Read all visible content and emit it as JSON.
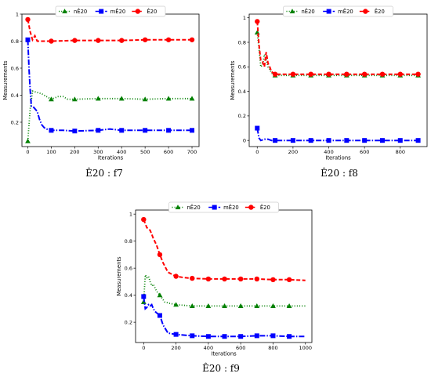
{
  "chart_data": [
    {
      "type": "line",
      "caption": "Ê20 : f7",
      "xlabel": "Iterations",
      "ylabel": "Measurements",
      "xlim": [
        -25,
        730
      ],
      "ylim": [
        0.02,
        1.0
      ],
      "xticks": [
        0,
        100,
        200,
        300,
        400,
        500,
        600,
        700
      ],
      "yticks": [
        0.2,
        0.4,
        0.6,
        0.8,
        1.0
      ],
      "grid": false,
      "legend_position": "top-center",
      "series": [
        {
          "name": "nÊ20",
          "color": "#008000",
          "style": "dotted",
          "marker": "triangle",
          "x": [
            0,
            10,
            20,
            40,
            60,
            80,
            100,
            130,
            150,
            170,
            200,
            300,
            400,
            500,
            600,
            700
          ],
          "y": [
            0.06,
            0.3,
            0.43,
            0.42,
            0.41,
            0.39,
            0.37,
            0.39,
            0.39,
            0.37,
            0.37,
            0.375,
            0.375,
            0.37,
            0.375,
            0.375
          ],
          "marker_x": [
            0,
            100,
            200,
            300,
            400,
            500,
            600,
            700
          ],
          "marker_y": [
            0.06,
            0.37,
            0.37,
            0.375,
            0.375,
            0.37,
            0.375,
            0.375
          ]
        },
        {
          "name": "mÊ20",
          "color": "#0000ff",
          "style": "dashdot",
          "marker": "square",
          "x": [
            0,
            5,
            10,
            15,
            20,
            30,
            40,
            50,
            60,
            70,
            80,
            100,
            150,
            200,
            300,
            350,
            400,
            500,
            600,
            700
          ],
          "y": [
            0.81,
            0.6,
            0.44,
            0.32,
            0.32,
            0.3,
            0.28,
            0.22,
            0.18,
            0.16,
            0.15,
            0.14,
            0.14,
            0.135,
            0.14,
            0.15,
            0.14,
            0.14,
            0.14,
            0.14
          ],
          "marker_x": [
            0,
            100,
            200,
            300,
            400,
            500,
            600,
            700
          ],
          "marker_y": [
            0.81,
            0.14,
            0.135,
            0.14,
            0.14,
            0.14,
            0.14,
            0.14
          ]
        },
        {
          "name": "Ê20",
          "color": "#ff0000",
          "style": "dashed",
          "marker": "circle",
          "x": [
            0,
            10,
            20,
            30,
            40,
            50,
            100,
            200,
            300,
            400,
            500,
            600,
            700
          ],
          "y": [
            0.96,
            0.87,
            0.81,
            0.84,
            0.8,
            0.8,
            0.8,
            0.805,
            0.805,
            0.805,
            0.81,
            0.81,
            0.81
          ],
          "marker_x": [
            0,
            100,
            200,
            300,
            400,
            500,
            600,
            700
          ],
          "marker_y": [
            0.96,
            0.8,
            0.805,
            0.805,
            0.805,
            0.81,
            0.81,
            0.81
          ]
        }
      ]
    },
    {
      "type": "line",
      "caption": "Ê20 : f8",
      "xlabel": "Iterations",
      "ylabel": "Measurements",
      "xlim": [
        -45,
        950
      ],
      "ylim": [
        -0.05,
        1.03
      ],
      "xticks": [
        0,
        200,
        400,
        600,
        800
      ],
      "yticks": [
        0.0,
        0.2,
        0.4,
        0.6,
        0.8,
        1.0
      ],
      "grid": false,
      "legend_position": "top-center",
      "series": [
        {
          "name": "nÊ20",
          "color": "#008000",
          "style": "dotted",
          "marker": "triangle",
          "x": [
            0,
            10,
            20,
            30,
            40,
            50,
            60,
            70,
            80,
            100,
            200,
            300,
            400,
            500,
            600,
            700,
            800,
            900
          ],
          "y": [
            0.88,
            0.75,
            0.6,
            0.62,
            0.7,
            0.66,
            0.6,
            0.58,
            0.55,
            0.53,
            0.53,
            0.53,
            0.53,
            0.53,
            0.53,
            0.53,
            0.53,
            0.53
          ],
          "marker_x": [
            0,
            100,
            200,
            300,
            400,
            500,
            600,
            700,
            800,
            900
          ],
          "marker_y": [
            0.88,
            0.53,
            0.53,
            0.53,
            0.53,
            0.53,
            0.53,
            0.53,
            0.53,
            0.53
          ]
        },
        {
          "name": "mÊ20",
          "color": "#0000ff",
          "style": "dashdot",
          "marker": "square",
          "x": [
            0,
            10,
            20,
            40,
            60,
            80,
            100,
            200,
            300,
            400,
            500,
            600,
            700,
            800,
            900
          ],
          "y": [
            0.1,
            0.02,
            0.0,
            0.01,
            0.01,
            0.0,
            0.0,
            0.0,
            0.0,
            0.0,
            0.0,
            0.0,
            0.0,
            0.0,
            0.0
          ],
          "marker_x": [
            0,
            100,
            200,
            300,
            400,
            500,
            600,
            700,
            800,
            900
          ],
          "marker_y": [
            0.1,
            0.0,
            0.0,
            0.0,
            0.0,
            0.0,
            0.0,
            0.0,
            0.0,
            0.0
          ]
        },
        {
          "name": "Ê20",
          "color": "#ff0000",
          "style": "dashed",
          "marker": "circle",
          "x": [
            0,
            10,
            20,
            30,
            40,
            50,
            60,
            70,
            80,
            100,
            200,
            300,
            400,
            500,
            600,
            700,
            800,
            900
          ],
          "y": [
            0.97,
            0.78,
            0.65,
            0.64,
            0.6,
            0.72,
            0.63,
            0.6,
            0.56,
            0.54,
            0.54,
            0.54,
            0.54,
            0.54,
            0.54,
            0.54,
            0.54,
            0.54
          ],
          "marker_x": [
            0,
            100,
            200,
            300,
            400,
            500,
            600,
            700,
            800,
            900
          ],
          "marker_y": [
            0.97,
            0.54,
            0.54,
            0.54,
            0.54,
            0.54,
            0.54,
            0.54,
            0.54,
            0.54
          ]
        }
      ]
    },
    {
      "type": "line",
      "caption": "Ê20 : f9",
      "xlabel": "Iterations",
      "ylabel": "Measurements",
      "xlim": [
        -50,
        1040
      ],
      "ylim": [
        0.05,
        1.03
      ],
      "xticks": [
        0,
        200,
        400,
        600,
        800,
        1000
      ],
      "yticks": [
        0.2,
        0.4,
        0.6,
        0.8,
        1.0
      ],
      "grid": false,
      "legend_position": "top-center",
      "series": [
        {
          "name": "nÊ20",
          "color": "#008000",
          "style": "dotted",
          "marker": "triangle",
          "x": [
            0,
            10,
            20,
            30,
            40,
            50,
            60,
            80,
            100,
            130,
            160,
            200,
            300,
            400,
            500,
            600,
            700,
            800,
            900,
            1000
          ],
          "y": [
            0.35,
            0.55,
            0.53,
            0.54,
            0.5,
            0.47,
            0.48,
            0.43,
            0.4,
            0.35,
            0.34,
            0.33,
            0.32,
            0.32,
            0.32,
            0.32,
            0.32,
            0.32,
            0.32,
            0.32
          ],
          "marker_x": [
            0,
            100,
            200,
            300,
            400,
            500,
            600,
            700,
            800,
            900
          ],
          "marker_y": [
            0.35,
            0.4,
            0.33,
            0.32,
            0.32,
            0.32,
            0.32,
            0.32,
            0.32,
            0.32
          ]
        },
        {
          "name": "mÊ20",
          "color": "#0000ff",
          "style": "dashdot",
          "marker": "square",
          "x": [
            0,
            10,
            20,
            30,
            40,
            50,
            60,
            70,
            80,
            100,
            120,
            150,
            200,
            300,
            400,
            500,
            600,
            700,
            800,
            900,
            1000
          ],
          "y": [
            0.39,
            0.3,
            0.31,
            0.33,
            0.32,
            0.33,
            0.3,
            0.28,
            0.27,
            0.25,
            0.18,
            0.12,
            0.11,
            0.1,
            0.095,
            0.095,
            0.095,
            0.1,
            0.1,
            0.095,
            0.095
          ],
          "marker_x": [
            0,
            100,
            200,
            300,
            400,
            500,
            600,
            700,
            800,
            900
          ],
          "marker_y": [
            0.39,
            0.25,
            0.11,
            0.1,
            0.095,
            0.095,
            0.095,
            0.1,
            0.1,
            0.095
          ]
        },
        {
          "name": "Ê20",
          "color": "#ff0000",
          "style": "dashed",
          "marker": "circle",
          "x": [
            0,
            20,
            40,
            60,
            80,
            100,
            120,
            150,
            200,
            250,
            300,
            400,
            500,
            600,
            700,
            800,
            900,
            1000
          ],
          "y": [
            0.96,
            0.9,
            0.88,
            0.82,
            0.77,
            0.7,
            0.64,
            0.57,
            0.54,
            0.53,
            0.525,
            0.52,
            0.52,
            0.52,
            0.52,
            0.515,
            0.515,
            0.51
          ],
          "marker_x": [
            0,
            100,
            200,
            300,
            400,
            500,
            600,
            700,
            800,
            900
          ],
          "marker_y": [
            0.96,
            0.7,
            0.54,
            0.525,
            0.52,
            0.52,
            0.52,
            0.52,
            0.515,
            0.515
          ]
        }
      ]
    }
  ]
}
